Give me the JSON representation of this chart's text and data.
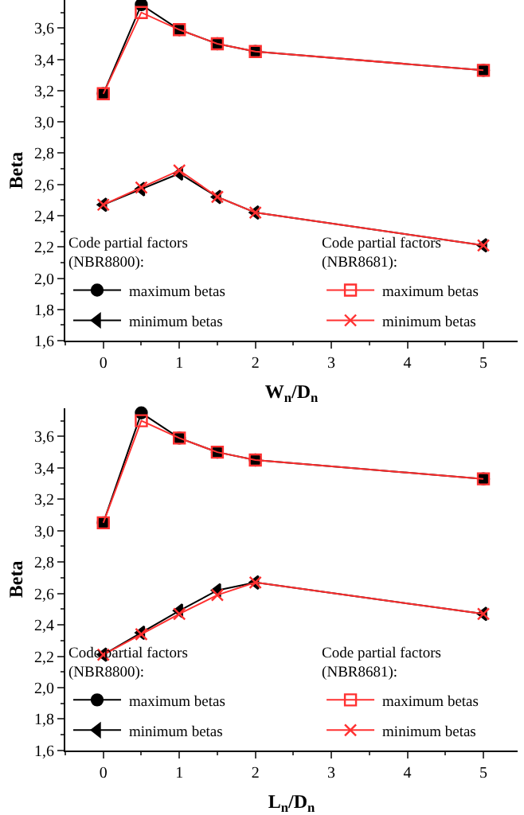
{
  "chart_data": [
    {
      "type": "line",
      "xlabel": "W$_{n}$/D$_{n}$",
      "ylabel": "Beta",
      "x": [
        0,
        0.5,
        1,
        1.5,
        2,
        5
      ],
      "xlim": [
        -0.5,
        5.45
      ],
      "xticks": [
        0,
        1,
        2,
        3,
        4,
        5
      ],
      "ylim": [
        1.6,
        3.78
      ],
      "yticks": [
        {
          "value": 1.6,
          "label": "1,6"
        },
        {
          "value": 1.8,
          "label": "1,8"
        },
        {
          "value": 2.0,
          "label": "2,0"
        },
        {
          "value": 2.2,
          "label": "2,2"
        },
        {
          "value": 2.4,
          "label": "2,4"
        },
        {
          "value": 2.6,
          "label": "2,6"
        },
        {
          "value": 2.8,
          "label": "2,8"
        },
        {
          "value": 3.0,
          "label": "3,0"
        },
        {
          "value": 3.2,
          "label": "3,2"
        },
        {
          "value": 3.4,
          "label": "3,4"
        },
        {
          "value": 3.6,
          "label": "3,6"
        }
      ],
      "legend": "bottom",
      "legend_title": [
        "Code partial factors\n(NBR8800):",
        "Code partial factors\n(NBR8681):"
      ],
      "line_style": "solid",
      "series": [
        {
          "name": "maximum betas",
          "color": "#000000",
          "marker": "circle",
          "values": [
            3.18,
            3.75,
            3.59,
            3.5,
            3.45,
            3.33
          ]
        },
        {
          "name": "minimum betas",
          "color": "#000000",
          "marker": "triangle",
          "values": [
            2.47,
            2.57,
            2.67,
            2.52,
            2.42,
            2.21
          ]
        },
        {
          "name": "maximum betas",
          "color": "#ff3030",
          "marker": "square",
          "values": [
            3.18,
            3.7,
            3.59,
            3.5,
            3.45,
            3.33
          ]
        },
        {
          "name": "minimum betas",
          "color": "#ff3030",
          "marker": "cross",
          "values": [
            2.47,
            2.58,
            2.69,
            2.52,
            2.42,
            2.21
          ]
        }
      ]
    },
    {
      "type": "line",
      "xlabel": "L$_{n}$/D$_{n}$",
      "ylabel": "Beta",
      "x": [
        0,
        0.5,
        1,
        1.5,
        2,
        5
      ],
      "xlim": [
        -0.5,
        5.45
      ],
      "xticks": [
        0,
        1,
        2,
        3,
        4,
        5
      ],
      "ylim": [
        1.6,
        3.78
      ],
      "yticks": [
        {
          "value": 1.6,
          "label": "1,6"
        },
        {
          "value": 1.8,
          "label": "1,8"
        },
        {
          "value": 2.0,
          "label": "2,0"
        },
        {
          "value": 2.2,
          "label": "2,2"
        },
        {
          "value": 2.4,
          "label": "2,4"
        },
        {
          "value": 2.6,
          "label": "2,6"
        },
        {
          "value": 2.8,
          "label": "2,8"
        },
        {
          "value": 3.0,
          "label": "3,0"
        },
        {
          "value": 3.2,
          "label": "3,2"
        },
        {
          "value": 3.4,
          "label": "3,4"
        },
        {
          "value": 3.6,
          "label": "3,6"
        }
      ],
      "legend": "bottom",
      "legend_title": [
        "Code partial factors\n(NBR8800):",
        "Code partial factors\n(NBR8681):"
      ],
      "line_style": "solid",
      "series": [
        {
          "name": "maximum betas",
          "color": "#000000",
          "marker": "circle",
          "values": [
            3.05,
            3.75,
            3.59,
            3.5,
            3.45,
            3.33
          ]
        },
        {
          "name": "minimum betas",
          "color": "#000000",
          "marker": "triangle",
          "values": [
            2.21,
            2.35,
            2.49,
            2.62,
            2.67,
            2.47
          ]
        },
        {
          "name": "maximum betas",
          "color": "#ff3030",
          "marker": "square",
          "values": [
            3.05,
            3.7,
            3.59,
            3.5,
            3.45,
            3.33
          ]
        },
        {
          "name": "minimum betas",
          "color": "#ff3030",
          "marker": "cross",
          "values": [
            2.21,
            2.34,
            2.47,
            2.59,
            2.67,
            2.47
          ]
        }
      ]
    }
  ]
}
